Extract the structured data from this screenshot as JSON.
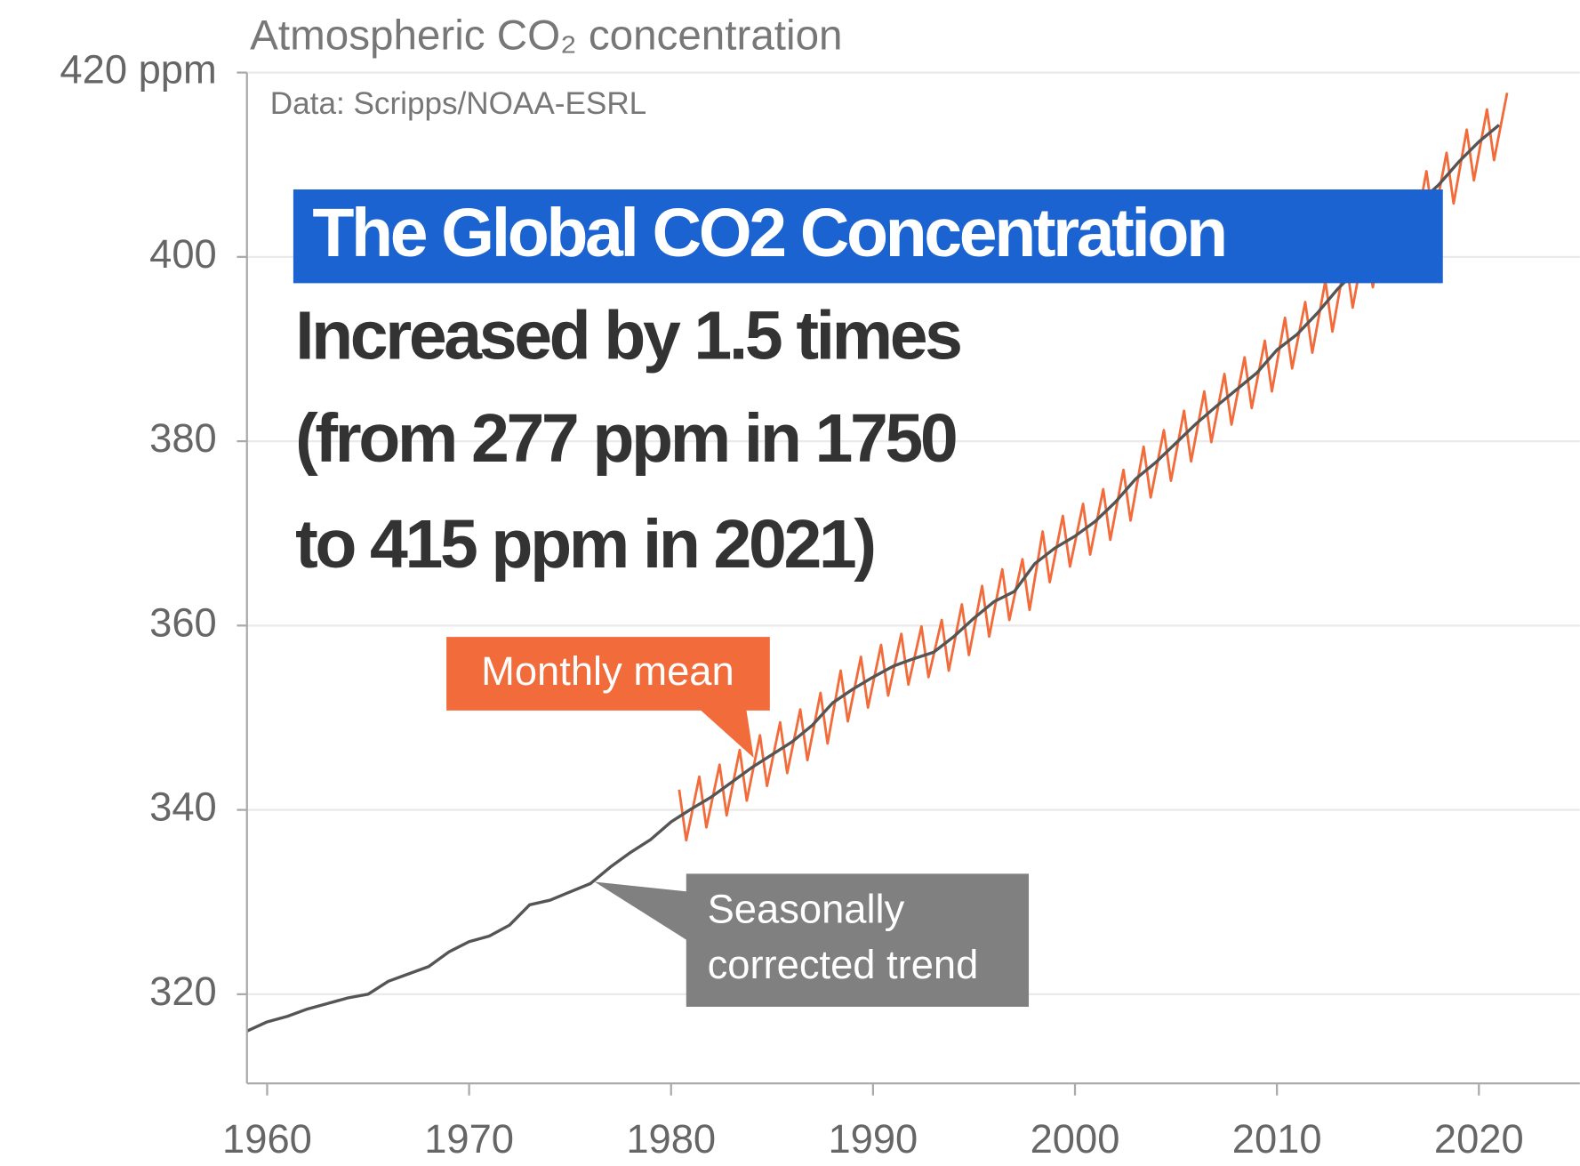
{
  "chart_data": {
    "type": "line",
    "title": "Atmospheric CO₂ concentration",
    "subtitle": "Data: Scripps/NOAA-ESRL",
    "headline": "The Global CO2 Concentration",
    "body": [
      "Increased by 1.5 times",
      "(from 277 ppm in 1750",
      "to 415 ppm in 2021)"
    ],
    "xlim": [
      1959,
      2025
    ],
    "xticks": [
      1960,
      1970,
      1980,
      1990,
      2000,
      2010,
      2020
    ],
    "ylim": [
      310,
      420
    ],
    "yticks": [
      320,
      340,
      360,
      380,
      400,
      {
        "value": 420,
        "label": "420 ppm"
      }
    ],
    "grid": true,
    "series": [
      {
        "name": "Monthly mean",
        "color": "#f26b3a",
        "x": [
          1980.4,
          1980.75,
          1981.4,
          1981.75,
          1982.4,
          1982.75,
          1983.4,
          1983.75,
          1984.4,
          1984.75,
          1985.4,
          1985.75,
          1986.4,
          1986.75,
          1987.4,
          1987.75,
          1988.4,
          1988.75,
          1989.4,
          1989.75,
          1990.4,
          1990.75,
          1991.4,
          1991.75,
          1992.4,
          1992.75,
          1993.4,
          1993.75,
          1994.4,
          1994.75,
          1995.4,
          1995.75,
          1996.4,
          1996.75,
          1997.4,
          1997.75,
          1998.4,
          1998.75,
          1999.4,
          1999.75,
          2000.4,
          2000.75,
          2001.4,
          2001.75,
          2002.4,
          2002.75,
          2003.4,
          2003.75,
          2004.4,
          2004.75,
          2005.4,
          2005.75,
          2006.4,
          2006.75,
          2007.4,
          2007.75,
          2008.4,
          2008.75,
          2009.4,
          2009.75,
          2010.4,
          2010.75,
          2011.4,
          2011.75,
          2012.4,
          2012.75,
          2013.4,
          2013.75,
          2014.4,
          2014.75,
          2015.4,
          2015.75,
          2016.4,
          2016.75,
          2017.4,
          2017.75,
          2018.4,
          2018.75,
          2019.4,
          2019.75,
          2020.4,
          2020.75,
          2021.4
        ],
        "values": [
          342.2,
          336.7,
          343.6,
          338.1,
          344.9,
          339.4,
          346.5,
          341.0,
          348.1,
          342.6,
          349.5,
          344.0,
          350.9,
          345.4,
          352.7,
          347.2,
          355.1,
          349.6,
          356.6,
          351.1,
          357.9,
          352.4,
          359.1,
          353.6,
          359.9,
          354.4,
          360.6,
          355.1,
          362.3,
          356.8,
          364.3,
          358.8,
          366.1,
          360.6,
          367.2,
          361.7,
          370.2,
          364.7,
          371.9,
          366.4,
          373.2,
          367.7,
          374.8,
          369.3,
          376.9,
          371.4,
          379.4,
          373.9,
          381.2,
          375.7,
          383.3,
          377.8,
          385.4,
          379.9,
          387.3,
          381.8,
          389.1,
          383.6,
          390.9,
          385.4,
          393.4,
          387.9,
          395.1,
          389.6,
          397.4,
          391.9,
          400.0,
          394.5,
          402.2,
          396.7,
          404.5,
          399.0,
          407.0,
          401.5,
          409.3,
          403.8,
          411.3,
          405.8,
          413.8,
          408.3,
          416.0,
          410.5,
          417.8
        ]
      },
      {
        "name": "Seasonally corrected trend",
        "color": "#555555",
        "x": [
          1959,
          1960,
          1961,
          1962,
          1963,
          1964,
          1965,
          1966,
          1967,
          1968,
          1969,
          1970,
          1971,
          1972,
          1973,
          1974,
          1975,
          1976,
          1977,
          1978,
          1979,
          1980,
          1981,
          1982,
          1983,
          1984,
          1985,
          1986,
          1987,
          1988,
          1989,
          1990,
          1991,
          1992,
          1993,
          1994,
          1995,
          1996,
          1997,
          1998,
          1999,
          2000,
          2001,
          2002,
          2003,
          2004,
          2005,
          2006,
          2007,
          2008,
          2009,
          2010,
          2011,
          2012,
          2013,
          2014,
          2015,
          2016,
          2017,
          2018,
          2019,
          2020,
          2021
        ],
        "values": [
          316,
          317,
          317.6,
          318.4,
          319,
          319.6,
          320,
          321.4,
          322.2,
          323,
          324.6,
          325.7,
          326.3,
          327.5,
          329.7,
          330.2,
          331.1,
          332,
          333.8,
          335.4,
          336.8,
          338.7,
          340.1,
          341.4,
          343,
          344.6,
          346,
          347.4,
          349.2,
          351.6,
          353.1,
          354.4,
          355.6,
          356.4,
          357.1,
          358.8,
          360.8,
          362.6,
          363.7,
          366.7,
          368.4,
          369.7,
          371.3,
          373.4,
          375.9,
          377.7,
          379.8,
          381.9,
          383.8,
          385.6,
          387.4,
          389.9,
          391.6,
          393.9,
          396.5,
          398.7,
          401,
          403.5,
          405.8,
          407.8,
          410.3,
          412.5,
          414.3
        ]
      }
    ]
  }
}
